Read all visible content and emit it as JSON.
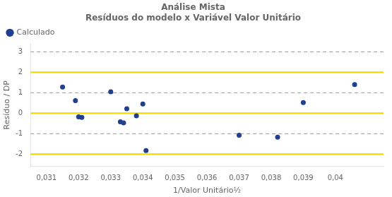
{
  "chart_data": {
    "type": "scatter",
    "title": "Análise Mista\nResíduos do modelo x Variável Valor Unitário",
    "xlabel": "1/Valor Unitário½",
    "ylabel": "Resíduo / DP",
    "x": [
      0.0315,
      0.0319,
      0.032,
      0.0321,
      0.033,
      0.0333,
      0.0334,
      0.0335,
      0.0338,
      0.034,
      0.0341,
      0.037,
      0.0382,
      0.039,
      0.0406
    ],
    "series": [
      {
        "name": "Calculado",
        "color": "#1f3f8f",
        "marker": "circle",
        "values": [
          1.28,
          0.62,
          -0.18,
          -0.2,
          1.05,
          -0.42,
          -0.47,
          0.22,
          -0.12,
          0.45,
          -1.82,
          -1.07,
          -1.17,
          0.52,
          1.4
        ]
      }
    ],
    "xlim": [
      0.0305,
      0.0415
    ],
    "ylim": [
      -2.6,
      3.4
    ],
    "xticks": [
      {
        "value": 0.031,
        "label": "0,031"
      },
      {
        "value": 0.032,
        "label": "0,032"
      },
      {
        "value": 0.033,
        "label": "0,033"
      },
      {
        "value": 0.034,
        "label": "0,034"
      },
      {
        "value": 0.035,
        "label": "0,035"
      },
      {
        "value": 0.036,
        "label": "0,036"
      },
      {
        "value": 0.037,
        "label": "0,037"
      },
      {
        "value": 0.038,
        "label": "0,038"
      },
      {
        "value": 0.039,
        "label": "0,039"
      },
      {
        "value": 0.04,
        "label": "0,04"
      }
    ],
    "yticks": [
      -2,
      -1,
      0,
      1,
      2,
      3
    ],
    "hlines": [
      {
        "value": -2.0,
        "color": "#f5d800",
        "line_style": "solid"
      },
      {
        "value": 0.0,
        "color": "#f5d800",
        "line_style": "solid"
      },
      {
        "value": 2.0,
        "color": "#f5d800",
        "line_style": "solid"
      },
      {
        "value": -1.0,
        "color": "#999999",
        "line_style": "dashed"
      },
      {
        "value": 1.0,
        "color": "#999999",
        "line_style": "dashed"
      },
      {
        "value": 3.0,
        "color": "#999999",
        "line_style": "dashed"
      }
    ],
    "grid": false,
    "legend": "top-left"
  }
}
